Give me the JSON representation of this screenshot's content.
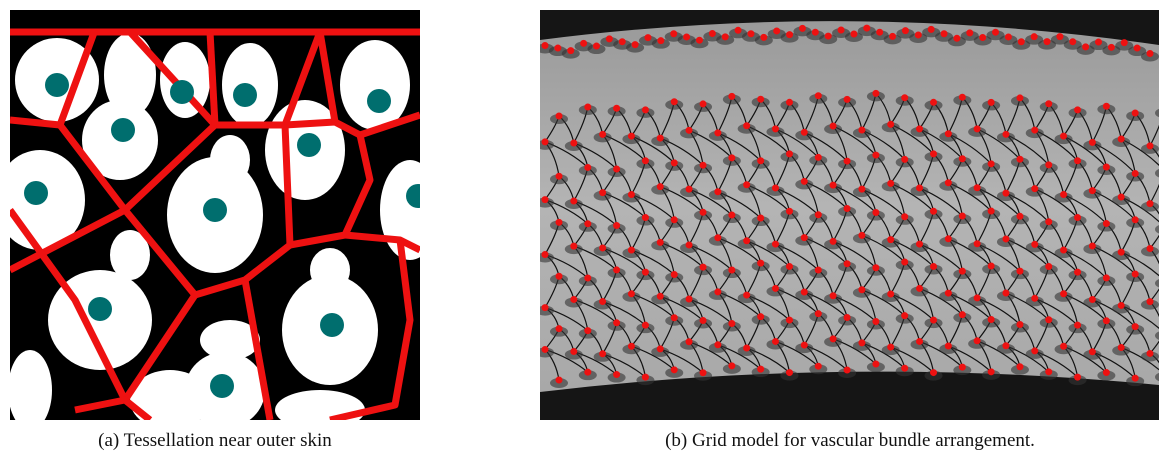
{
  "figure": {
    "subfigures": [
      {
        "caption": "(a) Tessellation near outer skin"
      },
      {
        "caption": "(b) Grid model for vascular bundle arrangement."
      }
    ]
  }
}
